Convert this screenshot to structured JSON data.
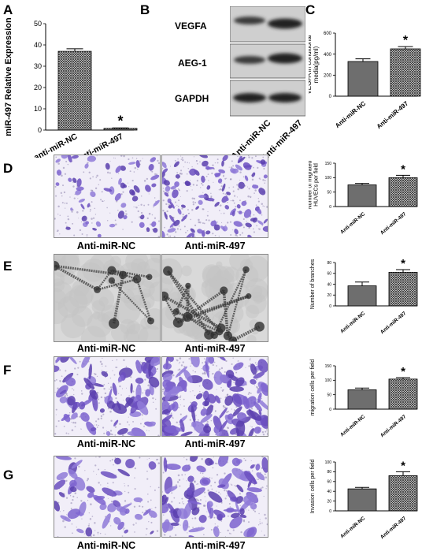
{
  "panels": {
    "A": "A",
    "B": "B",
    "C": "C",
    "D": "D",
    "E": "E",
    "F": "F",
    "G": "G"
  },
  "western_blot": {
    "bands": [
      "VEGFA",
      "AEG-1",
      "GAPDH"
    ],
    "lanes": [
      "Anti-miR-NC",
      "Anti-miR-497"
    ]
  },
  "image_captions": {
    "left": "Anti-miR-NC",
    "right": "Anti-miR-497"
  },
  "colors": {
    "purple_stain": "#7b5cc6",
    "gray_tube": "#9a9a9a",
    "bar_fill": "#7a7a7a"
  },
  "chart_data": [
    {
      "id": "A",
      "type": "bar",
      "categories": [
        "anti-miR-NC",
        "anti-miR-497"
      ],
      "values": [
        37,
        0.8
      ],
      "errors": [
        1.2,
        0.2
      ],
      "ylabel": "miR-497 Relative Expression",
      "ylim": [
        0,
        50
      ],
      "yticks": [
        0,
        10,
        20,
        30,
        40,
        50
      ],
      "annotation": "*"
    },
    {
      "id": "C",
      "type": "bar",
      "categories": [
        "Anti-miR-NC",
        "Anti-miR-497"
      ],
      "values": [
        330,
        450
      ],
      "errors": [
        25,
        22
      ],
      "ylabel": "VEGFA in conditional media(pg/ml)",
      "ylim": [
        0,
        600
      ],
      "yticks": [
        0,
        200,
        400,
        600
      ],
      "annotation": "*"
    },
    {
      "id": "D",
      "type": "bar",
      "categories": [
        "Anti-miR-NC",
        "Anti-miR-497"
      ],
      "values": [
        75,
        100
      ],
      "errors": [
        5,
        8
      ],
      "ylabel": "Number of migrated HUVECs per field",
      "ylim": [
        0,
        150
      ],
      "yticks": [
        0,
        50,
        100,
        150
      ],
      "annotation": "*"
    },
    {
      "id": "E",
      "type": "bar",
      "categories": [
        "Anti-miR-NC",
        "Anti-miR-497"
      ],
      "values": [
        37,
        62
      ],
      "errors": [
        7,
        5
      ],
      "ylabel": "Number of branches",
      "ylim": [
        0,
        80
      ],
      "yticks": [
        0,
        20,
        40,
        60,
        80
      ],
      "annotation": "*"
    },
    {
      "id": "F",
      "type": "bar",
      "categories": [
        "Anti-miR-NC",
        "Anti-miR-497"
      ],
      "values": [
        67,
        104
      ],
      "errors": [
        6,
        5
      ],
      "ylabel": "migration cells per field",
      "ylim": [
        0,
        150
      ],
      "yticks": [
        0,
        50,
        100,
        150
      ],
      "annotation": "*"
    },
    {
      "id": "G",
      "type": "bar",
      "categories": [
        "Anti-miR-NC",
        "Anti-miR-497"
      ],
      "values": [
        45,
        72
      ],
      "errors": [
        3,
        8
      ],
      "ylabel": "Invasion cells per field",
      "ylim": [
        0,
        100
      ],
      "yticks": [
        0,
        20,
        40,
        60,
        80,
        100
      ],
      "annotation": "*"
    }
  ]
}
